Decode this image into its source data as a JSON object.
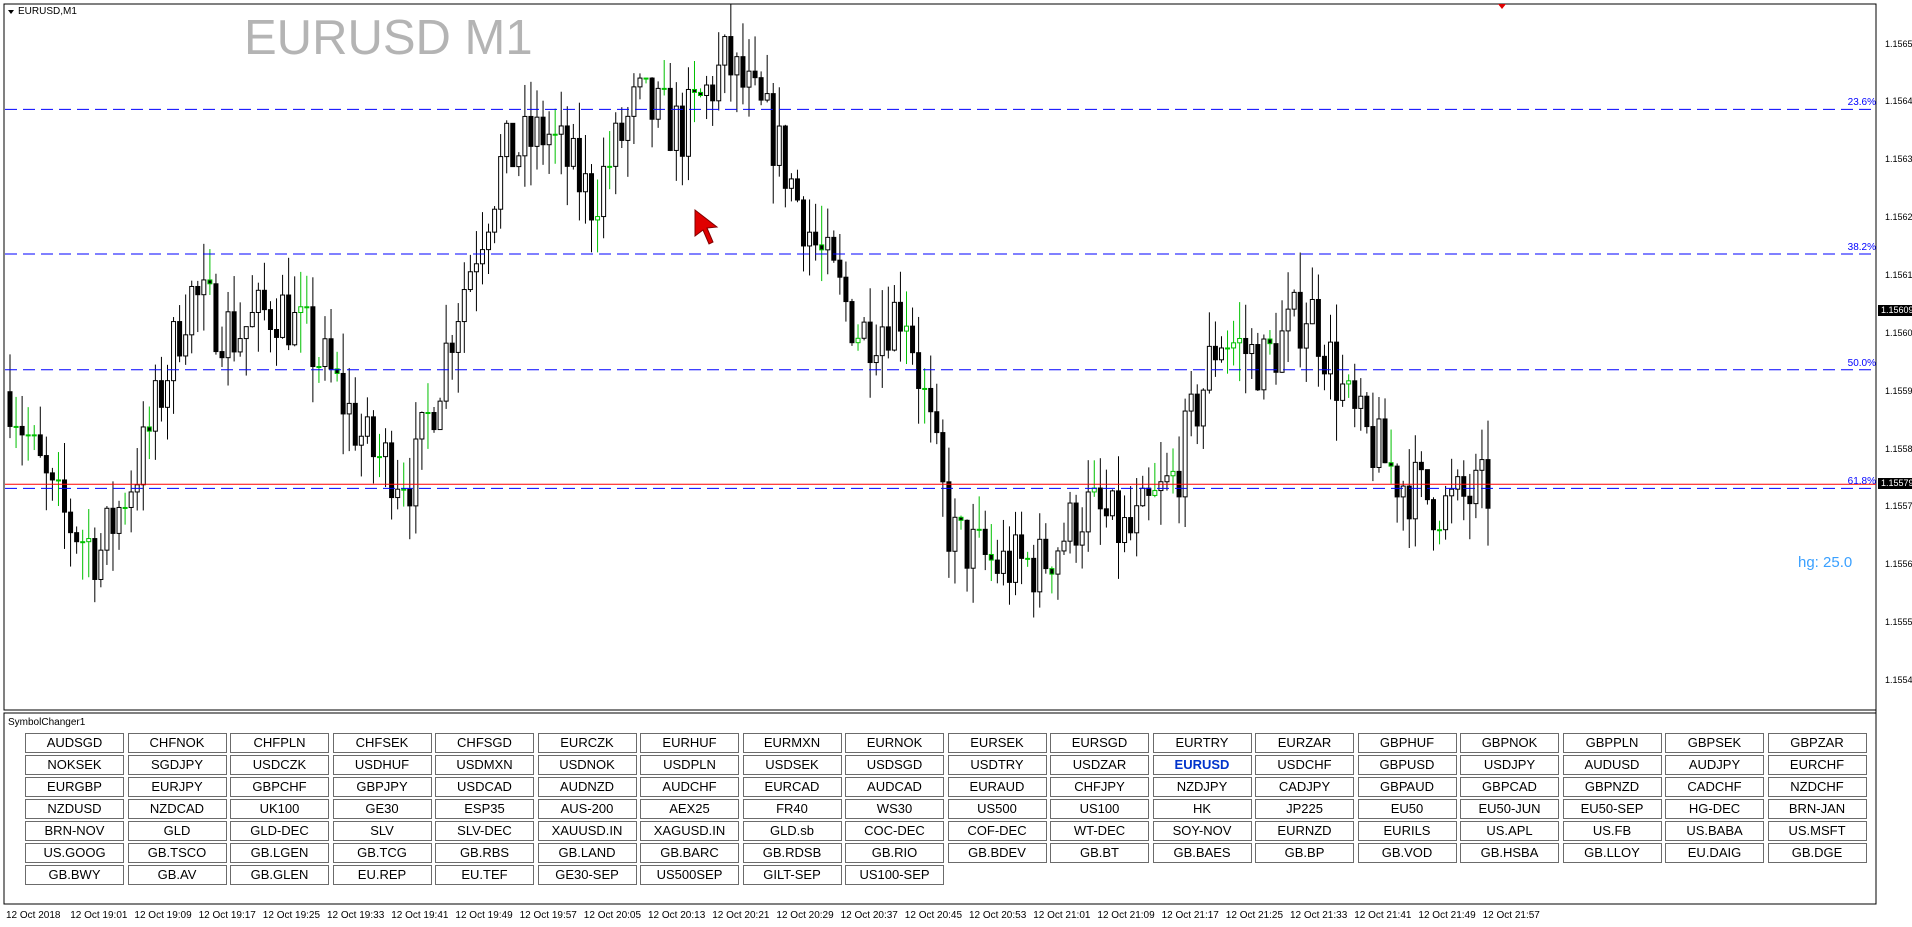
{
  "window": {
    "title": "EURUSD,M1"
  },
  "chart": {
    "symbol_title": "EURUSD M1",
    "current_price": "1.15579",
    "marked_price": "1.15609",
    "price_axis": [
      "1.15655",
      "1.15645",
      "1.15635",
      "1.15625",
      "1.15615",
      "1.15605",
      "1.15595",
      "1.15585",
      "1.15575",
      "1.15565",
      "1.15555",
      "1.15545"
    ],
    "fib_levels": [
      {
        "label": "23.6%",
        "price": 1.156438
      },
      {
        "label": "38.2%",
        "price": 1.156188
      },
      {
        "label": "50.0%",
        "price": 1.155988
      },
      {
        "label": "61.8%",
        "price": 1.155783
      }
    ],
    "hg_label": "hg: 25.0",
    "time_axis": [
      "12 Oct 2018",
      "12 Oct 19:01",
      "12 Oct 19:09",
      "12 Oct 19:17",
      "12 Oct 19:25",
      "12 Oct 19:33",
      "12 Oct 19:41",
      "12 Oct 19:49",
      "12 Oct 19:57",
      "12 Oct 20:05",
      "12 Oct 20:13",
      "12 Oct 20:21",
      "12 Oct 20:29",
      "12 Oct 20:37",
      "12 Oct 20:45",
      "12 Oct 20:53",
      "12 Oct 21:01",
      "12 Oct 21:09",
      "12 Oct 21:17",
      "12 Oct 21:25",
      "12 Oct 21:33",
      "12 Oct 21:41",
      "12 Oct 21:49",
      "12 Oct 21:57"
    ],
    "colors": {
      "bull": "#ffffff",
      "bear": "#000000",
      "doji": "#00c000",
      "fib": "#0000ff",
      "price_line": "#ff0000",
      "title": "#b4b4b4",
      "hg": "#3aa0ff"
    }
  },
  "chart_data": {
    "type": "candlestick",
    "title": "EURUSD M1",
    "xlabel": "",
    "ylabel": "",
    "ylim": [
      1.1554,
      1.15662
    ],
    "grid": false,
    "x": [
      "12 Oct 2018",
      "12 Oct 19:01",
      "12 Oct 19:09",
      "12 Oct 19:17",
      "12 Oct 19:25",
      "12 Oct 19:33",
      "12 Oct 19:41",
      "12 Oct 19:49",
      "12 Oct 19:57",
      "12 Oct 20:05",
      "12 Oct 20:13",
      "12 Oct 20:21",
      "12 Oct 20:29",
      "12 Oct 20:37",
      "12 Oct 20:45",
      "12 Oct 20:53",
      "12 Oct 21:01",
      "12 Oct 21:09",
      "12 Oct 21:17",
      "12 Oct 21:25",
      "12 Oct 21:33",
      "12 Oct 21:41",
      "12 Oct 21:49",
      "12 Oct 21:57"
    ],
    "close_path": [
      1.15595,
      1.15575,
      1.15567,
      1.15585,
      1.15612,
      1.15605,
      1.1561,
      1.156,
      1.15585,
      1.1558,
      1.1561,
      1.15635,
      1.1564,
      1.15628,
      1.15645,
      1.1564,
      1.15652,
      1.1564,
      1.1562,
      1.15605,
      1.1561,
      1.1557,
      1.15565,
      1.15565,
      1.15575,
      1.1557,
      1.1558,
      1.15605,
      1.156,
      1.1561,
      1.1559,
      1.1558,
      1.15575,
      1.15578
    ]
  },
  "symbol_changer": {
    "title": "SymbolChanger1",
    "active": "EURUSD",
    "rows": [
      [
        "AUDSGD",
        "CHFNOK",
        "CHFPLN",
        "CHFSEK",
        "CHFSGD",
        "EURCZK",
        "EURHUF",
        "EURMXN",
        "EURNOK",
        "EURSEK",
        "EURSGD",
        "EURTRY",
        "EURZAR",
        "GBPHUF",
        "GBPNOK",
        "GBPPLN",
        "GBPSEK",
        "GBPZAR"
      ],
      [
        "NOKSEK",
        "SGDJPY",
        "USDCZK",
        "USDHUF",
        "USDMXN",
        "USDNOK",
        "USDPLN",
        "USDSEK",
        "USDSGD",
        "USDTRY",
        "USDZAR",
        "EURUSD",
        "USDCHF",
        "GBPUSD",
        "USDJPY",
        "AUDUSD",
        "AUDJPY",
        "EURCHF"
      ],
      [
        "EURGBP",
        "EURJPY",
        "GBPCHF",
        "GBPJPY",
        "USDCAD",
        "AUDNZD",
        "AUDCHF",
        "EURCAD",
        "AUDCAD",
        "EURAUD",
        "CHFJPY",
        "NZDJPY",
        "CADJPY",
        "GBPAUD",
        "GBPCAD",
        "GBPNZD",
        "CADCHF",
        "NZDCHF"
      ],
      [
        "NZDUSD",
        "NZDCAD",
        "UK100",
        "GE30",
        "ESP35",
        "AUS-200",
        "AEX25",
        "FR40",
        "WS30",
        "US500",
        "US100",
        "HK",
        "JP225",
        "EU50",
        "EU50-JUN",
        "EU50-SEP",
        "HG-DEC",
        "BRN-JAN"
      ],
      [
        "BRN-NOV",
        "GLD",
        "GLD-DEC",
        "SLV",
        "SLV-DEC",
        "XAUUSD.IN",
        "XAGUSD.IN",
        "GLD.sb",
        "COC-DEC",
        "COF-DEC",
        "WT-DEC",
        "SOY-NOV",
        "EURNZD",
        "EURILS",
        "US.APL",
        "US.FB",
        "US.BABA",
        "US.MSFT"
      ],
      [
        "US.GOOG",
        "GB.TSCO",
        "GB.LGEN",
        "GB.TCG",
        "GB.RBS",
        "GB.LAND",
        "GB.BARC",
        "GB.RDSB",
        "GB.RIO",
        "GB.BDEV",
        "GB.BT",
        "GB.BAES",
        "GB.BP",
        "GB.VOD",
        "GB.HSBA",
        "GB.LLOY",
        "EU.DAIG",
        "GB.DGE"
      ],
      [
        "GB.BWY",
        "GB.AV",
        "GB.GLEN",
        "EU.REP",
        "EU.TEF",
        "GE30-SEP",
        "US500SEP",
        "GILT-SEP",
        "US100-SEP"
      ]
    ]
  }
}
